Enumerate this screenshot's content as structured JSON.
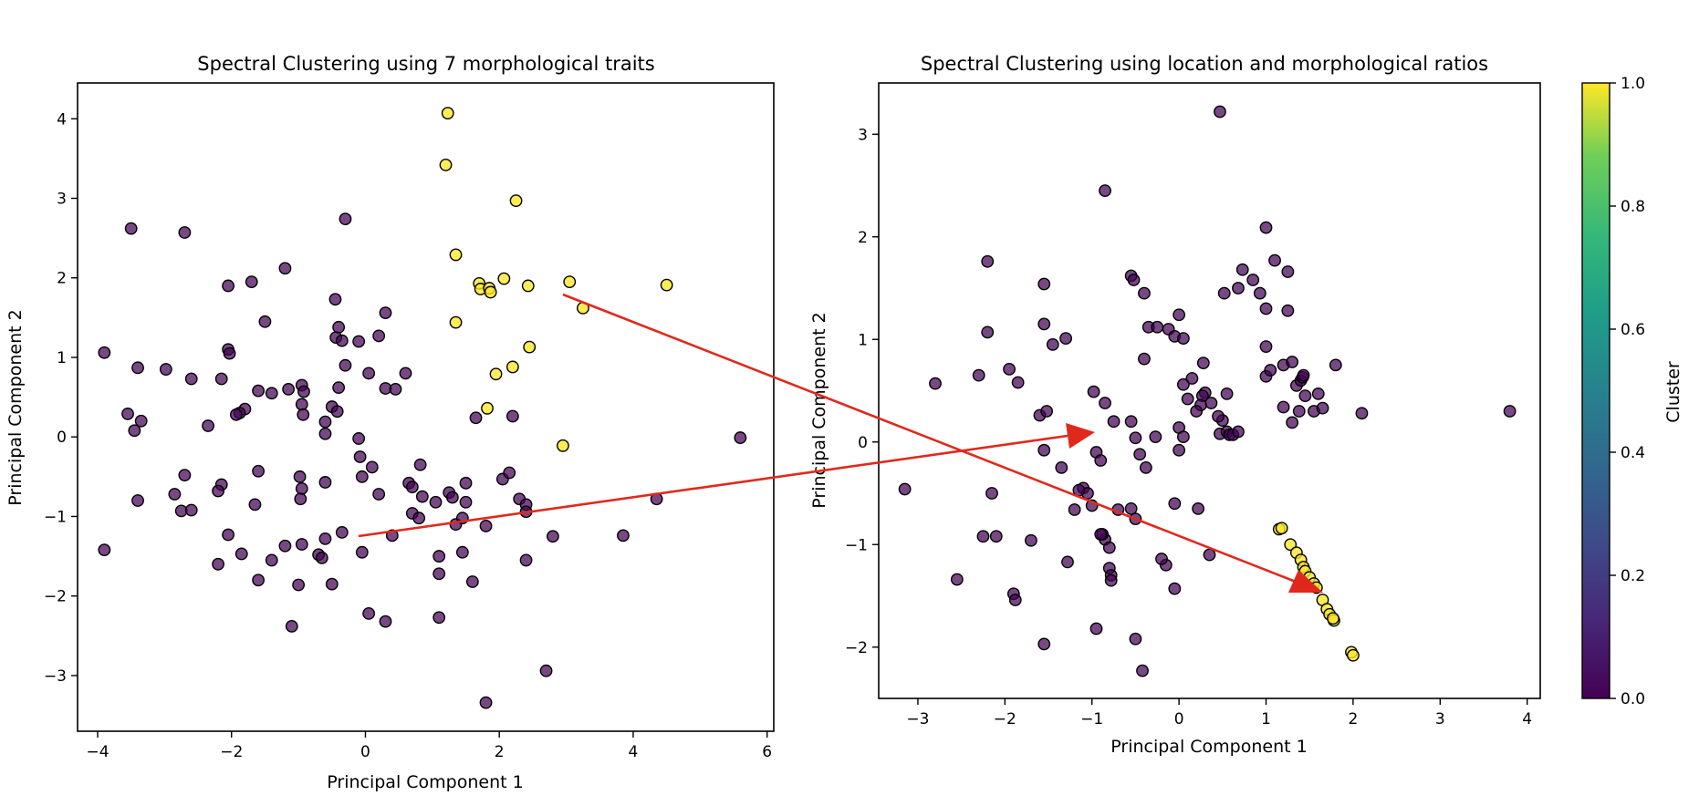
{
  "chart_data": [
    {
      "type": "scatter",
      "title": "Spectral Clustering using 7 morphological traits",
      "xlabel": "Principal Component 1",
      "ylabel": "Principal Component 2",
      "xlim": [
        -4.3,
        6.1
      ],
      "ylim": [
        -3.7,
        4.45
      ],
      "xticks": [
        -4,
        -2,
        0,
        2,
        4,
        6
      ],
      "yticks": [
        -3,
        -2,
        -1,
        0,
        1,
        2,
        3,
        4
      ],
      "points": [
        [
          -3.5,
          2.62
        ],
        [
          -2.7,
          2.57
        ],
        [
          -0.3,
          2.74
        ],
        [
          -1.2,
          2.12
        ],
        [
          -1.7,
          1.95
        ],
        [
          -2.05,
          1.9
        ],
        [
          -3.9,
          1.06
        ],
        [
          -3.4,
          0.87
        ],
        [
          -2.98,
          0.85
        ],
        [
          -2.6,
          0.73
        ],
        [
          -2.15,
          0.73
        ],
        [
          -2.05,
          1.1
        ],
        [
          -2.03,
          1.05
        ],
        [
          -1.5,
          1.45
        ],
        [
          -1.4,
          0.55
        ],
        [
          -1.6,
          0.58
        ],
        [
          -1.15,
          0.6
        ],
        [
          -0.95,
          0.65
        ],
        [
          -0.92,
          0.57
        ],
        [
          -0.95,
          0.41
        ],
        [
          -0.93,
          0.28
        ],
        [
          -1.8,
          0.35
        ],
        [
          -1.88,
          0.3
        ],
        [
          -1.93,
          0.28
        ],
        [
          -2.35,
          0.14
        ],
        [
          -3.35,
          0.2
        ],
        [
          -3.55,
          0.29
        ],
        [
          -3.45,
          0.08
        ],
        [
          -0.45,
          1.73
        ],
        [
          -0.44,
          1.25
        ],
        [
          -0.4,
          1.38
        ],
        [
          -0.35,
          1.21
        ],
        [
          -0.3,
          0.9
        ],
        [
          -0.1,
          1.2
        ],
        [
          -0.4,
          0.62
        ],
        [
          -0.5,
          0.38
        ],
        [
          -0.42,
          0.32
        ],
        [
          -0.6,
          0.19
        ],
        [
          -0.6,
          0.04
        ],
        [
          0.2,
          1.27
        ],
        [
          0.3,
          1.56
        ],
        [
          0.05,
          0.8
        ],
        [
          0.6,
          0.8
        ],
        [
          0.3,
          0.61
        ],
        [
          0.45,
          0.6
        ],
        [
          -0.1,
          -0.02
        ],
        [
          -0.08,
          -0.25
        ],
        [
          0.1,
          -0.38
        ],
        [
          -0.05,
          -0.5
        ],
        [
          0.2,
          -0.72
        ],
        [
          0.4,
          -1.24
        ],
        [
          0.65,
          -0.58
        ],
        [
          0.7,
          -0.63
        ],
        [
          0.85,
          -0.75
        ],
        [
          0.7,
          -0.96
        ],
        [
          0.8,
          -1.02
        ],
        [
          0.82,
          -0.35
        ],
        [
          1.05,
          -0.82
        ],
        [
          1.25,
          -0.7
        ],
        [
          1.3,
          -0.76
        ],
        [
          1.35,
          -1.1
        ],
        [
          1.45,
          -1.02
        ],
        [
          1.5,
          -0.58
        ],
        [
          1.5,
          -0.82
        ],
        [
          1.65,
          0.24
        ],
        [
          2.05,
          -0.53
        ],
        [
          2.15,
          -0.45
        ],
        [
          2.2,
          0.26
        ],
        [
          2.3,
          -0.78
        ],
        [
          2.4,
          -0.85
        ],
        [
          2.4,
          -0.94
        ],
        [
          2.4,
          -1.55
        ],
        [
          2.8,
          -1.25
        ],
        [
          3.85,
          -1.24
        ],
        [
          4.35,
          -0.78
        ],
        [
          5.6,
          -0.01
        ],
        [
          1.1,
          -1.5
        ],
        [
          1.1,
          -1.72
        ],
        [
          1.45,
          -1.45
        ],
        [
          1.6,
          -1.82
        ],
        [
          1.8,
          -1.12
        ],
        [
          -1.6,
          -0.43
        ],
        [
          -1.65,
          -0.85
        ],
        [
          -2.15,
          -0.6
        ],
        [
          -2.2,
          -0.68
        ],
        [
          -2.7,
          -0.48
        ],
        [
          -2.75,
          -0.93
        ],
        [
          -2.6,
          -0.92
        ],
        [
          -2.85,
          -0.72
        ],
        [
          -3.4,
          -0.8
        ],
        [
          -3.9,
          -1.42
        ],
        [
          -2.05,
          -1.23
        ],
        [
          -1.85,
          -1.47
        ],
        [
          -2.2,
          -1.6
        ],
        [
          -1.6,
          -1.8
        ],
        [
          -1.4,
          -1.55
        ],
        [
          -1.2,
          -1.37
        ],
        [
          -0.95,
          -1.35
        ],
        [
          -0.98,
          -0.5
        ],
        [
          -0.95,
          -0.65
        ],
        [
          -0.97,
          -0.78
        ],
        [
          -0.6,
          -0.57
        ],
        [
          -0.6,
          -1.28
        ],
        [
          -0.7,
          -1.48
        ],
        [
          -0.65,
          -1.52
        ],
        [
          -0.35,
          -1.2
        ],
        [
          -0.5,
          -1.85
        ],
        [
          -1.0,
          -1.86
        ],
        [
          -1.1,
          -2.38
        ],
        [
          -0.05,
          -1.45
        ],
        [
          0.05,
          -2.22
        ],
        [
          0.3,
          -2.32
        ],
        [
          1.1,
          -2.27
        ],
        [
          2.7,
          -2.94
        ],
        [
          1.8,
          -3.34
        ]
      ],
      "points_highlight": [
        [
          1.23,
          4.07
        ],
        [
          1.2,
          3.42
        ],
        [
          2.25,
          2.97
        ],
        [
          1.35,
          2.29
        ],
        [
          1.7,
          1.93
        ],
        [
          1.72,
          1.86
        ],
        [
          1.85,
          1.87
        ],
        [
          1.87,
          1.82
        ],
        [
          2.07,
          1.99
        ],
        [
          2.43,
          1.9
        ],
        [
          3.05,
          1.95
        ],
        [
          3.25,
          1.62
        ],
        [
          4.5,
          1.91
        ],
        [
          1.35,
          1.44
        ],
        [
          2.45,
          1.13
        ],
        [
          2.2,
          0.88
        ],
        [
          1.95,
          0.79
        ],
        [
          1.82,
          0.36
        ],
        [
          2.95,
          -0.11
        ]
      ]
    },
    {
      "type": "scatter",
      "title": "Spectral Clustering using location and morphological ratios",
      "xlabel": "Principal Component 1",
      "ylabel": "Principal Component 2",
      "xlim": [
        -3.45,
        4.15
      ],
      "ylim": [
        -2.5,
        3.5
      ],
      "xticks": [
        -3,
        -2,
        -1,
        0,
        1,
        2,
        3,
        4
      ],
      "yticks": [
        -2,
        -1,
        0,
        1,
        2,
        3
      ],
      "colorbar_label": "Cluster",
      "colorbar_ticks": [
        "0.0",
        "0.2",
        "0.4",
        "0.6",
        "0.8",
        "1.0"
      ],
      "colors": {
        "cluster_0": "#440154",
        "cluster_1": "#fde725"
      },
      "points": [
        [
          0.47,
          3.22
        ],
        [
          -0.85,
          2.45
        ],
        [
          1.0,
          2.09
        ],
        [
          -2.2,
          1.76
        ],
        [
          1.1,
          1.77
        ],
        [
          1.25,
          1.66
        ],
        [
          0.73,
          1.68
        ],
        [
          0.85,
          1.58
        ],
        [
          0.68,
          1.5
        ],
        [
          0.52,
          1.45
        ],
        [
          0.93,
          1.45
        ],
        [
          -0.55,
          1.62
        ],
        [
          -0.52,
          1.58
        ],
        [
          -1.55,
          1.54
        ],
        [
          -0.4,
          1.45
        ],
        [
          -2.2,
          1.07
        ],
        [
          -1.55,
          1.15
        ],
        [
          -1.3,
          1.01
        ],
        [
          -1.45,
          0.95
        ],
        [
          -0.35,
          1.12
        ],
        [
          -0.25,
          1.12
        ],
        [
          -0.12,
          1.1
        ],
        [
          -0.05,
          1.03
        ],
        [
          0.0,
          1.24
        ],
        [
          0.05,
          1.01
        ],
        [
          1.0,
          1.3
        ],
        [
          1.25,
          1.28
        ],
        [
          -0.4,
          0.81
        ],
        [
          -1.95,
          0.71
        ],
        [
          -2.3,
          0.65
        ],
        [
          -1.85,
          0.58
        ],
        [
          -2.8,
          0.57
        ],
        [
          -0.98,
          0.49
        ],
        [
          -0.85,
          0.38
        ],
        [
          0.28,
          0.77
        ],
        [
          0.15,
          0.62
        ],
        [
          0.05,
          0.56
        ],
        [
          0.1,
          0.42
        ],
        [
          -1.6,
          0.26
        ],
        [
          -1.52,
          0.3
        ],
        [
          0.3,
          0.48
        ],
        [
          0.27,
          0.45
        ],
        [
          0.25,
          0.36
        ],
        [
          0.37,
          0.38
        ],
        [
          0.55,
          0.47
        ],
        [
          0.5,
          0.21
        ],
        [
          0.47,
          0.08
        ],
        [
          0.55,
          0.1
        ],
        [
          0.58,
          0.07
        ],
        [
          0.62,
          0.07
        ],
        [
          0.68,
          0.1
        ],
        [
          0.45,
          0.25
        ],
        [
          0.2,
          0.3
        ],
        [
          0.0,
          0.14
        ],
        [
          0.0,
          -0.08
        ],
        [
          0.05,
          0.05
        ],
        [
          -0.5,
          0.04
        ],
        [
          -0.27,
          0.05
        ],
        [
          -0.55,
          0.2
        ],
        [
          -0.75,
          0.2
        ],
        [
          -1.55,
          -0.08
        ],
        [
          -0.45,
          -0.12
        ],
        [
          -0.38,
          -0.25
        ],
        [
          -0.95,
          -0.1
        ],
        [
          -0.9,
          -0.18
        ],
        [
          -1.1,
          -0.45
        ],
        [
          -1.05,
          -0.5
        ],
        [
          -1.35,
          -0.25
        ],
        [
          -1.2,
          -0.66
        ],
        [
          -1.15,
          -0.47
        ],
        [
          -1.0,
          -0.62
        ],
        [
          -0.55,
          -0.65
        ],
        [
          -0.7,
          -0.66
        ],
        [
          -0.05,
          -0.6
        ],
        [
          0.22,
          -0.65
        ],
        [
          -0.15,
          -1.2
        ],
        [
          -0.2,
          -1.14
        ],
        [
          -0.05,
          -1.43
        ],
        [
          -0.85,
          -0.95
        ],
        [
          -0.88,
          -0.9
        ],
        [
          -0.9,
          -0.9
        ],
        [
          -0.5,
          -0.75
        ],
        [
          -0.8,
          -1.03
        ],
        [
          -0.8,
          -1.23
        ],
        [
          -0.78,
          -1.3
        ],
        [
          -0.78,
          -1.35
        ],
        [
          -1.28,
          -1.17
        ],
        [
          -1.7,
          -0.96
        ],
        [
          -2.1,
          -0.92
        ],
        [
          -2.25,
          -0.92
        ],
        [
          -2.15,
          -0.5
        ],
        [
          -3.15,
          -0.46
        ],
        [
          -2.55,
          -1.34
        ],
        [
          -1.9,
          -1.48
        ],
        [
          -1.88,
          -1.54
        ],
        [
          -1.55,
          -1.97
        ],
        [
          -0.95,
          -1.82
        ],
        [
          -0.5,
          -1.92
        ],
        [
          -0.42,
          -2.23
        ],
        [
          1.2,
          0.34
        ],
        [
          1.3,
          0.19
        ],
        [
          1.38,
          0.3
        ],
        [
          1.35,
          0.55
        ],
        [
          1.4,
          0.6
        ],
        [
          1.42,
          0.63
        ],
        [
          1.43,
          0.65
        ],
        [
          1.45,
          0.45
        ],
        [
          1.55,
          0.3
        ],
        [
          1.6,
          0.47
        ],
        [
          1.65,
          0.33
        ],
        [
          1.2,
          0.75
        ],
        [
          1.3,
          0.78
        ],
        [
          1.0,
          0.64
        ],
        [
          1.05,
          0.7
        ],
        [
          1.0,
          0.93
        ],
        [
          1.8,
          0.75
        ],
        [
          2.1,
          0.28
        ],
        [
          3.8,
          0.3
        ],
        [
          0.35,
          -1.1
        ]
      ],
      "points_highlight": [
        [
          1.15,
          -0.85
        ],
        [
          1.18,
          -0.84
        ],
        [
          1.28,
          -1.0
        ],
        [
          1.35,
          -1.08
        ],
        [
          1.4,
          -1.15
        ],
        [
          1.43,
          -1.22
        ],
        [
          1.45,
          -1.26
        ],
        [
          1.5,
          -1.32
        ],
        [
          1.55,
          -1.38
        ],
        [
          1.58,
          -1.42
        ],
        [
          1.65,
          -1.54
        ],
        [
          1.7,
          -1.63
        ],
        [
          1.73,
          -1.68
        ],
        [
          1.78,
          -1.74
        ],
        [
          1.77,
          -1.72
        ],
        [
          1.98,
          -2.05
        ],
        [
          2.0,
          -2.08
        ]
      ]
    }
  ]
}
